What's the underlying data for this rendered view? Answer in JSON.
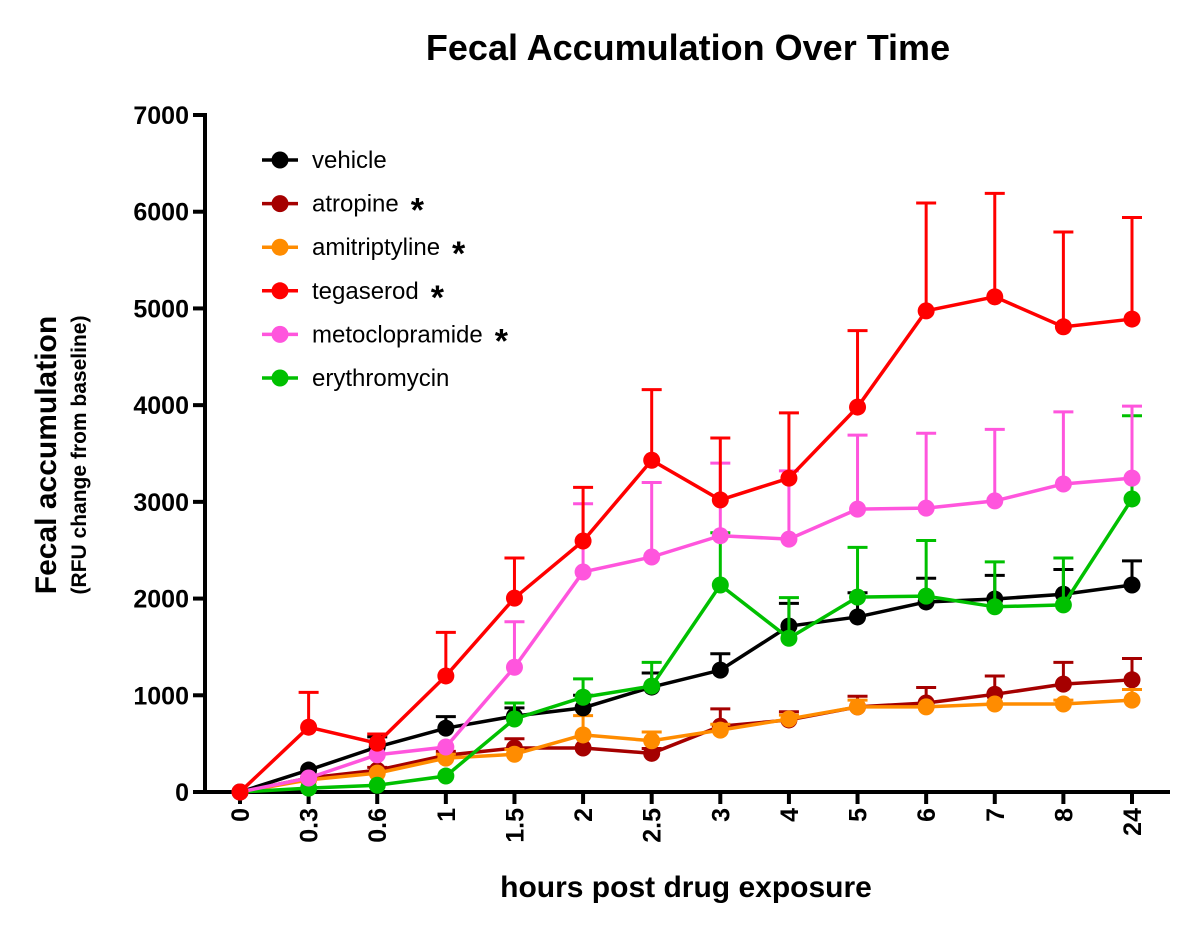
{
  "chart_data": {
    "type": "line",
    "title": "Fecal Accumulation Over Time",
    "xlabel": "hours post drug exposure",
    "ylabel": "Fecal accumulation",
    "ylabel_sub": "(RFU change from baseline)",
    "ylim": [
      0,
      7000
    ],
    "yticks": [
      0,
      1000,
      2000,
      3000,
      4000,
      5000,
      6000,
      7000
    ],
    "categories": [
      "0",
      "0.3",
      "0.6",
      "1",
      "1.5",
      "2",
      "2.5",
      "3",
      "4",
      "5",
      "6",
      "7",
      "8",
      "24"
    ],
    "legend_position": "top-left",
    "grid": false,
    "series": [
      {
        "name": "vehicle",
        "marker": "*",
        "showStar": false,
        "color": "#000000",
        "values": [
          0,
          227,
          465,
          660,
          785,
          870,
          1085,
          1260,
          1715,
          1810,
          1965,
          1995,
          2045,
          2140
        ],
        "error_upper": [
          0,
          0,
          105,
          120,
          85,
          130,
          145,
          170,
          235,
          250,
          245,
          245,
          255,
          250
        ]
      },
      {
        "name": "atropine",
        "marker": "*",
        "showStar": true,
        "color": "#a50000",
        "values": [
          0,
          145,
          225,
          380,
          455,
          455,
          400,
          680,
          745,
          880,
          920,
          1010,
          1115,
          1160
        ],
        "error_upper": [
          0,
          0,
          30,
          40,
          95,
          0,
          50,
          180,
          85,
          110,
          160,
          190,
          225,
          220
        ]
      },
      {
        "name": "amitriptyline",
        "marker": "*",
        "showStar": true,
        "color": "#ff8c00",
        "values": [
          0,
          125,
          195,
          350,
          390,
          590,
          530,
          640,
          755,
          880,
          880,
          910,
          910,
          950
        ],
        "error_upper": [
          0,
          0,
          0,
          40,
          50,
          200,
          90,
          60,
          40,
          70,
          0,
          0,
          40,
          110
        ]
      },
      {
        "name": "tegaserod",
        "marker": "*",
        "showStar": true,
        "color": "#ff0000",
        "values": [
          0,
          670,
          505,
          1200,
          2005,
          2595,
          3430,
          3020,
          3245,
          3980,
          4975,
          5120,
          4810,
          4890
        ],
        "error_upper": [
          0,
          360,
          95,
          450,
          415,
          555,
          730,
          640,
          675,
          790,
          1115,
          1070,
          980,
          1050
        ]
      },
      {
        "name": "metoclopramide",
        "marker": "*",
        "showStar": true,
        "color": "#ff55dd",
        "values": [
          0,
          145,
          385,
          465,
          1290,
          2275,
          2430,
          2650,
          2615,
          2925,
          2935,
          3010,
          3185,
          3245
        ],
        "error_upper": [
          0,
          0,
          0,
          0,
          470,
          705,
          770,
          750,
          705,
          765,
          775,
          740,
          745,
          745
        ]
      },
      {
        "name": "erythromycin",
        "marker": "",
        "showStar": false,
        "color": "#00c000",
        "values": [
          0,
          40,
          70,
          165,
          755,
          980,
          1095,
          2140,
          1590,
          2015,
          2025,
          1915,
          1935,
          3030
        ],
        "error_upper": [
          0,
          0,
          0,
          0,
          165,
          190,
          245,
          540,
          420,
          515,
          575,
          465,
          485,
          860
        ]
      }
    ]
  }
}
